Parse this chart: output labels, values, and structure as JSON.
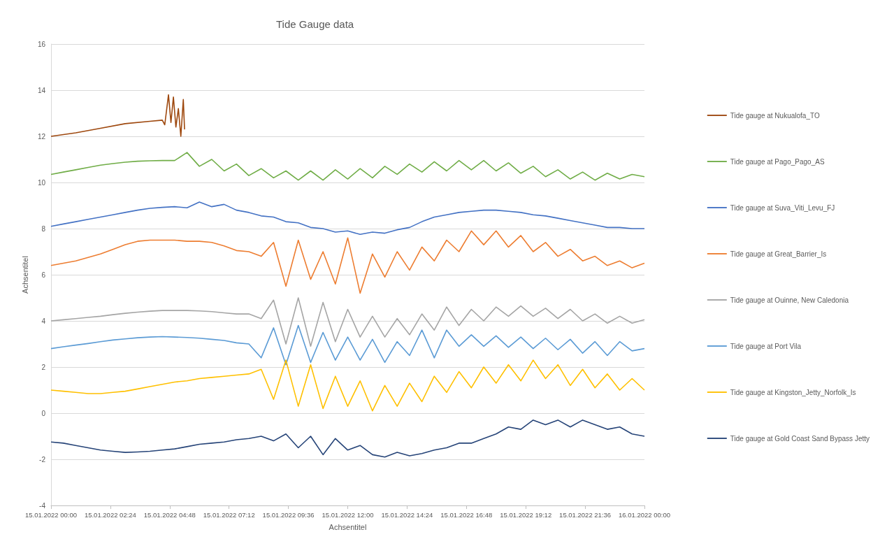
{
  "chart_data": {
    "type": "line",
    "title": "Tide Gauge data",
    "xlabel": "Achsentitel",
    "ylabel": "Achsentitel",
    "x": [
      "2022-01-15T00:00",
      "2022-01-15T00:30",
      "2022-01-15T01:00",
      "2022-01-15T01:30",
      "2022-01-15T02:00",
      "2022-01-15T02:30",
      "2022-01-15T03:00",
      "2022-01-15T03:30",
      "2022-01-15T04:00",
      "2022-01-15T04:30",
      "2022-01-15T05:00",
      "2022-01-15T05:30",
      "2022-01-15T06:00",
      "2022-01-15T06:30",
      "2022-01-15T07:00",
      "2022-01-15T07:30",
      "2022-01-15T08:00",
      "2022-01-15T08:30",
      "2022-01-15T09:00",
      "2022-01-15T09:30",
      "2022-01-15T10:00",
      "2022-01-15T10:30",
      "2022-01-15T11:00",
      "2022-01-15T11:30",
      "2022-01-15T12:00",
      "2022-01-15T12:30",
      "2022-01-15T13:00",
      "2022-01-15T13:30",
      "2022-01-15T14:00",
      "2022-01-15T14:30",
      "2022-01-15T15:00",
      "2022-01-15T15:30",
      "2022-01-15T16:00",
      "2022-01-15T16:30",
      "2022-01-15T17:00",
      "2022-01-15T17:30",
      "2022-01-15T18:00",
      "2022-01-15T18:30",
      "2022-01-15T19:00",
      "2022-01-15T19:30",
      "2022-01-15T20:00",
      "2022-01-15T20:30",
      "2022-01-15T21:00",
      "2022-01-15T21:30",
      "2022-01-15T22:00",
      "2022-01-15T22:30",
      "2022-01-15T23:00",
      "2022-01-15T23:30",
      "2022-01-16T00:00"
    ],
    "xlim": [
      "2022-01-15T00:00",
      "2022-01-16T00:00"
    ],
    "xticks": [
      {
        "value": "2022-01-15T00:00",
        "label": "15.01.2022 00:00"
      },
      {
        "value": "2022-01-15T02:24",
        "label": "15.01.2022 02:24"
      },
      {
        "value": "2022-01-15T04:48",
        "label": "15.01.2022 04:48"
      },
      {
        "value": "2022-01-15T07:12",
        "label": "15.01.2022 07:12"
      },
      {
        "value": "2022-01-15T09:36",
        "label": "15.01.2022 09:36"
      },
      {
        "value": "2022-01-15T12:00",
        "label": "15.01.2022 12:00"
      },
      {
        "value": "2022-01-15T14:24",
        "label": "15.01.2022 14:24"
      },
      {
        "value": "2022-01-15T16:48",
        "label": "15.01.2022 16:48"
      },
      {
        "value": "2022-01-15T19:12",
        "label": "15.01.2022 19:12"
      },
      {
        "value": "2022-01-15T21:36",
        "label": "15.01.2022 21:36"
      },
      {
        "value": "2022-01-16T00:00",
        "label": "16.01.2022 00:00"
      }
    ],
    "ylim": [
      -4,
      16
    ],
    "yticks": [
      -4,
      -2,
      0,
      2,
      4,
      6,
      8,
      10,
      12,
      14,
      16
    ],
    "grid": "y",
    "legend": "right",
    "marker": "none",
    "series": [
      {
        "name": "Tide gauge at Nukualofa_TO",
        "color": "#9e480e",
        "x": [
          "2022-01-15T00:00",
          "2022-01-15T01:00",
          "2022-01-15T02:00",
          "2022-01-15T03:00",
          "2022-01-15T04:00",
          "2022-01-15T04:30",
          "2022-01-15T04:36",
          "2022-01-15T04:45",
          "2022-01-15T04:51",
          "2022-01-15T04:57",
          "2022-01-15T05:03",
          "2022-01-15T05:09",
          "2022-01-15T05:15",
          "2022-01-15T05:21",
          "2022-01-15T05:24"
        ],
        "values": [
          12.0,
          12.15,
          12.35,
          12.55,
          12.65,
          12.7,
          12.5,
          13.8,
          12.6,
          13.7,
          12.4,
          13.2,
          12.0,
          13.6,
          12.3
        ]
      },
      {
        "name": "Tide gauge at Pago_Pago_AS",
        "color": "#70ad47",
        "values": [
          10.35,
          10.45,
          10.55,
          10.65,
          10.75,
          10.82,
          10.88,
          10.92,
          10.94,
          10.95,
          10.95,
          11.3,
          10.7,
          11.0,
          10.5,
          10.8,
          10.3,
          10.6,
          10.2,
          10.5,
          10.1,
          10.5,
          10.1,
          10.55,
          10.15,
          10.6,
          10.2,
          10.7,
          10.35,
          10.8,
          10.45,
          10.9,
          10.5,
          10.95,
          10.55,
          10.95,
          10.5,
          10.85,
          10.4,
          10.7,
          10.25,
          10.55,
          10.15,
          10.45,
          10.1,
          10.4,
          10.15,
          10.35,
          10.25
        ]
      },
      {
        "name": "Tide gauge at Suva_Viti_Levu_FJ",
        "color": "#4472c4",
        "values": [
          8.1,
          8.2,
          8.3,
          8.4,
          8.5,
          8.6,
          8.7,
          8.8,
          8.88,
          8.92,
          8.95,
          8.9,
          9.15,
          8.95,
          9.05,
          8.8,
          8.7,
          8.55,
          8.5,
          8.3,
          8.25,
          8.05,
          8.0,
          7.85,
          7.9,
          7.75,
          7.85,
          7.8,
          7.95,
          8.05,
          8.3,
          8.5,
          8.6,
          8.7,
          8.75,
          8.8,
          8.8,
          8.75,
          8.7,
          8.6,
          8.55,
          8.45,
          8.35,
          8.25,
          8.15,
          8.05,
          8.05,
          8.0,
          8.0
        ]
      },
      {
        "name": "Tide gauge at Great_Barrier_Is",
        "color": "#ed7d31",
        "values": [
          6.4,
          6.5,
          6.6,
          6.75,
          6.9,
          7.1,
          7.3,
          7.45,
          7.5,
          7.5,
          7.5,
          7.45,
          7.45,
          7.4,
          7.25,
          7.05,
          7.0,
          6.8,
          7.4,
          5.5,
          7.5,
          5.8,
          7.0,
          5.6,
          7.6,
          5.2,
          6.9,
          5.9,
          7.0,
          6.2,
          7.2,
          6.6,
          7.5,
          7.0,
          7.9,
          7.3,
          7.9,
          7.2,
          7.7,
          7.0,
          7.4,
          6.8,
          7.1,
          6.6,
          6.8,
          6.4,
          6.6,
          6.3,
          6.5
        ]
      },
      {
        "name": "Tide gauge at Ouinne, New Caledonia",
        "color": "#a5a5a5",
        "values": [
          4.0,
          4.05,
          4.1,
          4.15,
          4.2,
          4.27,
          4.33,
          4.38,
          4.42,
          4.45,
          4.45,
          4.45,
          4.43,
          4.4,
          4.35,
          4.3,
          4.3,
          4.1,
          4.9,
          3.0,
          5.0,
          2.9,
          4.8,
          3.1,
          4.5,
          3.3,
          4.2,
          3.3,
          4.1,
          3.4,
          4.3,
          3.6,
          4.6,
          3.8,
          4.5,
          4.0,
          4.6,
          4.2,
          4.65,
          4.2,
          4.55,
          4.1,
          4.5,
          4.0,
          4.3,
          3.9,
          4.2,
          3.9,
          4.05
        ]
      },
      {
        "name": "Tide gauge at Port Vila",
        "color": "#5b9bd5",
        "values": [
          2.8,
          2.88,
          2.95,
          3.02,
          3.1,
          3.17,
          3.22,
          3.27,
          3.3,
          3.32,
          3.3,
          3.28,
          3.25,
          3.2,
          3.15,
          3.05,
          3.0,
          2.4,
          3.7,
          2.1,
          3.8,
          2.2,
          3.5,
          2.3,
          3.3,
          2.3,
          3.2,
          2.2,
          3.1,
          2.5,
          3.6,
          2.4,
          3.6,
          2.9,
          3.4,
          2.9,
          3.35,
          2.85,
          3.3,
          2.8,
          3.25,
          2.75,
          3.2,
          2.6,
          3.1,
          2.5,
          3.1,
          2.7,
          2.8
        ]
      },
      {
        "name": "Tide gauge at Kingston_Jetty_Norfolk_Is",
        "color": "#ffc000",
        "values": [
          1.0,
          0.95,
          0.9,
          0.85,
          0.85,
          0.9,
          0.95,
          1.05,
          1.15,
          1.25,
          1.35,
          1.4,
          1.5,
          1.55,
          1.6,
          1.65,
          1.7,
          1.9,
          0.6,
          2.3,
          0.3,
          2.1,
          0.2,
          1.6,
          0.3,
          1.4,
          0.1,
          1.2,
          0.3,
          1.3,
          0.5,
          1.6,
          0.9,
          1.8,
          1.1,
          2.0,
          1.3,
          2.1,
          1.4,
          2.3,
          1.5,
          2.1,
          1.2,
          1.9,
          1.1,
          1.7,
          1.0,
          1.5,
          1.0
        ]
      },
      {
        "name": "Tide gauge at Gold Coast Sand Bypass Jetty",
        "color": "#264478",
        "values": [
          -1.25,
          -1.3,
          -1.4,
          -1.5,
          -1.6,
          -1.65,
          -1.7,
          -1.68,
          -1.65,
          -1.6,
          -1.55,
          -1.45,
          -1.35,
          -1.3,
          -1.25,
          -1.15,
          -1.1,
          -1.0,
          -1.2,
          -0.9,
          -1.5,
          -1.0,
          -1.8,
          -1.1,
          -1.6,
          -1.4,
          -1.8,
          -1.9,
          -1.7,
          -1.85,
          -1.75,
          -1.6,
          -1.5,
          -1.3,
          -1.3,
          -1.1,
          -0.9,
          -0.6,
          -0.7,
          -0.3,
          -0.5,
          -0.3,
          -0.6,
          -0.3,
          -0.5,
          -0.7,
          -0.6,
          -0.9,
          -1.0
        ]
      }
    ]
  }
}
